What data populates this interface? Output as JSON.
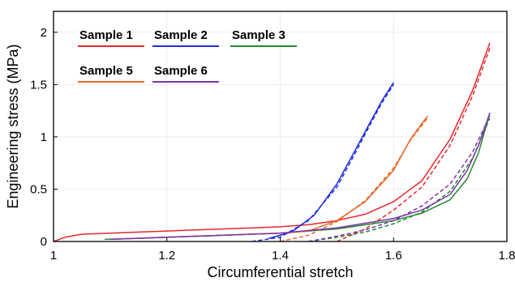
{
  "chart_data": {
    "type": "line",
    "title": "",
    "xlabel": "Circumferential stretch",
    "ylabel": "Engineering stress (MPa)",
    "xlim": [
      1,
      1.8
    ],
    "ylim": [
      0,
      2.2
    ],
    "xticks": [
      1,
      1.2,
      1.4,
      1.6,
      1.8
    ],
    "xtick_labels": [
      "1",
      "1.2",
      "1.4",
      "1.6",
      "1.8"
    ],
    "yticks": [
      0,
      0.5,
      1,
      1.5,
      2
    ],
    "ytick_labels": [
      "0",
      "0.5",
      "1",
      "1.5",
      "2"
    ],
    "grid": true,
    "legend_position": "top-left",
    "line_styles": {
      "experimental": "solid",
      "model_fit": "dashed"
    },
    "series": [
      {
        "name": "Sample 1",
        "color": "#e8262b",
        "x": [
          1.0,
          1.02,
          1.05,
          1.1,
          1.15,
          1.2,
          1.25,
          1.3,
          1.35,
          1.4,
          1.45,
          1.5,
          1.55,
          1.6,
          1.65,
          1.7,
          1.74,
          1.77
        ],
        "y": [
          0.0,
          0.04,
          0.07,
          0.08,
          0.09,
          0.1,
          0.11,
          0.12,
          0.13,
          0.14,
          0.16,
          0.2,
          0.26,
          0.38,
          0.58,
          0.98,
          1.45,
          1.9
        ],
        "fit_x": [
          1.5,
          1.55,
          1.6,
          1.65,
          1.7,
          1.74,
          1.77
        ],
        "fit_y": [
          0.0,
          0.12,
          0.3,
          0.52,
          0.92,
          1.4,
          1.85
        ]
      },
      {
        "name": "Sample 2",
        "color": "#1f2ee6",
        "x": [
          1.38,
          1.42,
          1.46,
          1.5,
          1.53,
          1.56,
          1.58,
          1.6
        ],
        "y": [
          0.03,
          0.09,
          0.25,
          0.55,
          0.85,
          1.15,
          1.35,
          1.52
        ],
        "fit_x": [
          1.35,
          1.4,
          1.45,
          1.5,
          1.53,
          1.56,
          1.58,
          1.6
        ],
        "fit_y": [
          0.0,
          0.04,
          0.2,
          0.52,
          0.82,
          1.13,
          1.33,
          1.5
        ]
      },
      {
        "name": "Sample 3",
        "color": "#1f8a2e",
        "x": [
          1.09,
          1.15,
          1.2,
          1.3,
          1.4,
          1.5,
          1.6,
          1.65,
          1.7,
          1.73,
          1.75,
          1.77
        ],
        "y": [
          0.02,
          0.03,
          0.04,
          0.06,
          0.08,
          0.12,
          0.2,
          0.27,
          0.4,
          0.6,
          0.85,
          1.23
        ],
        "fit_x": [
          1.45,
          1.5,
          1.55,
          1.6,
          1.65,
          1.7,
          1.74,
          1.77
        ],
        "fit_y": [
          0.0,
          0.04,
          0.09,
          0.17,
          0.28,
          0.48,
          0.8,
          1.18
        ]
      },
      {
        "name": "Sample 5",
        "color": "#e8692a",
        "x": [
          1.1,
          1.2,
          1.3,
          1.4,
          1.45,
          1.5,
          1.55,
          1.6,
          1.63,
          1.66
        ],
        "y": [
          0.02,
          0.04,
          0.06,
          0.08,
          0.1,
          0.2,
          0.38,
          0.68,
          0.98,
          1.2
        ],
        "fit_x": [
          1.4,
          1.45,
          1.5,
          1.55,
          1.6,
          1.63,
          1.66
        ],
        "fit_y": [
          0.0,
          0.06,
          0.19,
          0.39,
          0.7,
          0.97,
          1.18
        ]
      },
      {
        "name": "Sample 6",
        "color": "#7b35a8",
        "x": [
          1.1,
          1.2,
          1.3,
          1.4,
          1.5,
          1.6,
          1.65,
          1.7,
          1.73,
          1.75,
          1.77
        ],
        "y": [
          0.02,
          0.04,
          0.06,
          0.08,
          0.13,
          0.22,
          0.3,
          0.45,
          0.68,
          0.92,
          1.23
        ],
        "fit_x": [
          1.45,
          1.5,
          1.55,
          1.6,
          1.65,
          1.7,
          1.74,
          1.77
        ],
        "fit_y": [
          0.0,
          0.05,
          0.11,
          0.2,
          0.34,
          0.55,
          0.86,
          1.2
        ]
      }
    ]
  }
}
